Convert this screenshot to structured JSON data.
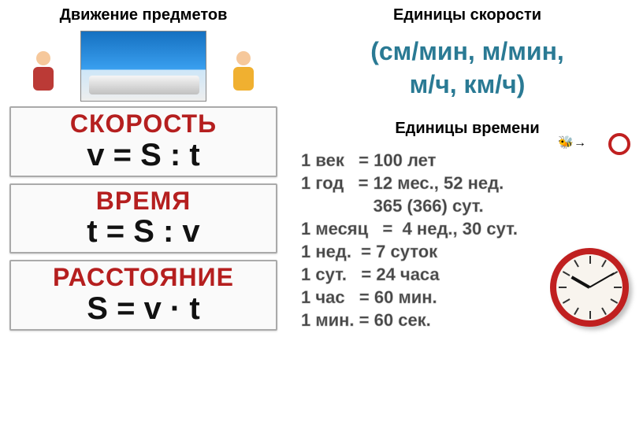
{
  "colors": {
    "red": "#b51f1f",
    "teal": "#2a7a94",
    "text": "#111"
  },
  "left": {
    "heading": "Движение предметов",
    "cards": [
      {
        "title": "СКОРОСТЬ",
        "eq": "v = S : t"
      },
      {
        "title": "ВРЕМЯ",
        "eq": "t = S : v"
      },
      {
        "title": "РАССТОЯНИЕ",
        "eq": "S = v · t"
      }
    ]
  },
  "right": {
    "heading1": "Единицы скорости",
    "units_line1": "(см/мин, м/мин,",
    "units_line2": "м/ч, км/ч)",
    "heading2": "Единицы времени",
    "lines": [
      "1 век   = 100 лет",
      "1 год   = 12 мес., 52 нед.",
      "               365 (366) сут.",
      "1 месяц   =  4 нед., 30 сут.",
      "1 нед.  = 7 суток",
      "1 сут.   = 24 часа",
      "1 час   = 60 мин.",
      "1 мин. = 60 сек."
    ],
    "time_text_color": "#444"
  },
  "clock": {
    "hour_angle": 300,
    "minute_angle": 60,
    "rim_color": "#c02020"
  }
}
